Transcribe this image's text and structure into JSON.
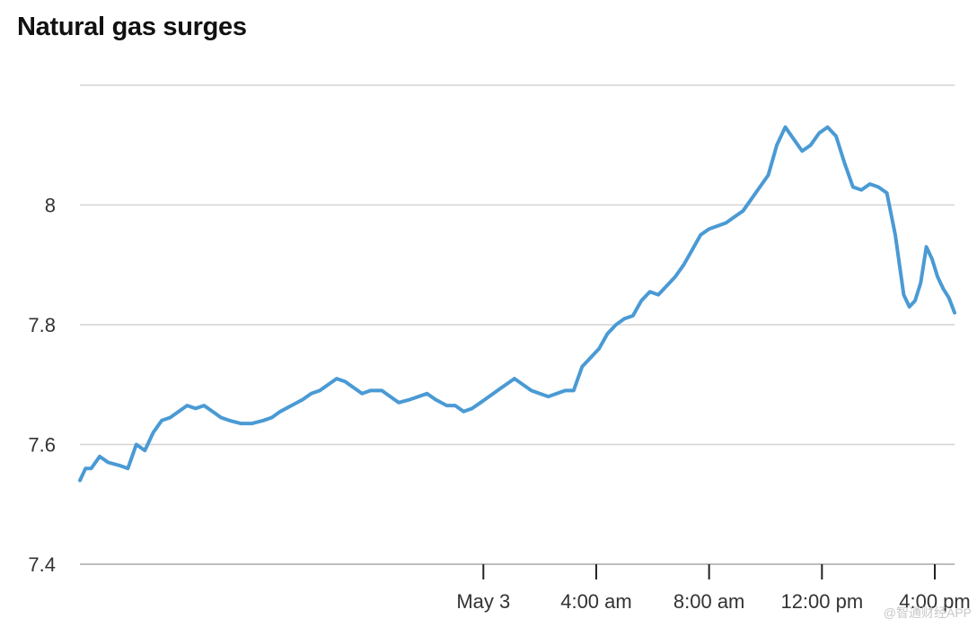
{
  "chart_data": {
    "type": "line",
    "title": "Natural gas surges",
    "xlabel": "",
    "ylabel": "",
    "ylim": [
      7.4,
      8.2
    ],
    "yticks": [
      7.4,
      7.6,
      7.8,
      8
    ],
    "ytick_labels": [
      "7.4",
      "7.6",
      "7.8",
      "8"
    ],
    "xlim": [
      -14.3,
      16.7
    ],
    "xticks": [
      {
        "label": "May 3",
        "value": 0
      },
      {
        "label": "4:00 am",
        "value": 4
      },
      {
        "label": "8:00 am",
        "value": 8
      },
      {
        "label": "12:00 pm",
        "value": 12
      },
      {
        "label": "4:00 pm",
        "value": 16
      }
    ],
    "grid": true,
    "color": "#4a9ad4",
    "series": [
      {
        "values": [
          [
            -14.3,
            7.54
          ],
          [
            -14.1,
            7.56
          ],
          [
            -13.9,
            7.56
          ],
          [
            -13.6,
            7.58
          ],
          [
            -13.3,
            7.57
          ],
          [
            -12.9,
            7.565
          ],
          [
            -12.6,
            7.56
          ],
          [
            -12.3,
            7.6
          ],
          [
            -12.0,
            7.59
          ],
          [
            -11.7,
            7.62
          ],
          [
            -11.4,
            7.64
          ],
          [
            -11.1,
            7.645
          ],
          [
            -10.8,
            7.655
          ],
          [
            -10.5,
            7.665
          ],
          [
            -10.2,
            7.66
          ],
          [
            -9.9,
            7.665
          ],
          [
            -9.6,
            7.655
          ],
          [
            -9.3,
            7.645
          ],
          [
            -9.0,
            7.64
          ],
          [
            -8.6,
            7.635
          ],
          [
            -8.2,
            7.635
          ],
          [
            -7.8,
            7.64
          ],
          [
            -7.5,
            7.645
          ],
          [
            -7.2,
            7.655
          ],
          [
            -6.8,
            7.665
          ],
          [
            -6.4,
            7.675
          ],
          [
            -6.1,
            7.685
          ],
          [
            -5.8,
            7.69
          ],
          [
            -5.5,
            7.7
          ],
          [
            -5.2,
            7.71
          ],
          [
            -4.9,
            7.705
          ],
          [
            -4.6,
            7.695
          ],
          [
            -4.3,
            7.685
          ],
          [
            -4.0,
            7.69
          ],
          [
            -3.6,
            7.69
          ],
          [
            -3.3,
            7.68
          ],
          [
            -3.0,
            7.67
          ],
          [
            -2.6,
            7.675
          ],
          [
            -2.3,
            7.68
          ],
          [
            -2.0,
            7.685
          ],
          [
            -1.7,
            7.675
          ],
          [
            -1.3,
            7.665
          ],
          [
            -1.0,
            7.665
          ],
          [
            -0.7,
            7.655
          ],
          [
            -0.4,
            7.66
          ],
          [
            -0.1,
            7.67
          ],
          [
            0.2,
            7.68
          ],
          [
            0.5,
            7.69
          ],
          [
            0.8,
            7.7
          ],
          [
            1.1,
            7.71
          ],
          [
            1.4,
            7.7
          ],
          [
            1.7,
            7.69
          ],
          [
            2.0,
            7.685
          ],
          [
            2.3,
            7.68
          ],
          [
            2.6,
            7.685
          ],
          [
            2.9,
            7.69
          ],
          [
            3.2,
            7.69
          ],
          [
            3.5,
            7.73
          ],
          [
            3.8,
            7.745
          ],
          [
            4.1,
            7.76
          ],
          [
            4.4,
            7.785
          ],
          [
            4.7,
            7.8
          ],
          [
            5.0,
            7.81
          ],
          [
            5.3,
            7.815
          ],
          [
            5.6,
            7.84
          ],
          [
            5.9,
            7.855
          ],
          [
            6.2,
            7.85
          ],
          [
            6.5,
            7.865
          ],
          [
            6.8,
            7.88
          ],
          [
            7.1,
            7.9
          ],
          [
            7.4,
            7.925
          ],
          [
            7.7,
            7.95
          ],
          [
            8.0,
            7.96
          ],
          [
            8.3,
            7.965
          ],
          [
            8.6,
            7.97
          ],
          [
            8.9,
            7.98
          ],
          [
            9.2,
            7.99
          ],
          [
            9.5,
            8.01
          ],
          [
            9.8,
            8.03
          ],
          [
            10.1,
            8.05
          ],
          [
            10.4,
            8.1
          ],
          [
            10.7,
            8.13
          ],
          [
            11.0,
            8.11
          ],
          [
            11.3,
            8.09
          ],
          [
            11.6,
            8.1
          ],
          [
            11.9,
            8.12
          ],
          [
            12.2,
            8.13
          ],
          [
            12.5,
            8.115
          ],
          [
            12.8,
            8.07
          ],
          [
            13.1,
            8.03
          ],
          [
            13.4,
            8.025
          ],
          [
            13.7,
            8.035
          ],
          [
            14.0,
            8.03
          ],
          [
            14.3,
            8.02
          ],
          [
            14.6,
            7.95
          ],
          [
            14.9,
            7.85
          ],
          [
            15.1,
            7.83
          ],
          [
            15.3,
            7.84
          ],
          [
            15.5,
            7.87
          ],
          [
            15.7,
            7.93
          ],
          [
            15.9,
            7.91
          ],
          [
            16.1,
            7.88
          ],
          [
            16.3,
            7.86
          ],
          [
            16.5,
            7.845
          ],
          [
            16.7,
            7.82
          ]
        ]
      }
    ]
  },
  "watermark": "@智通财经APP"
}
